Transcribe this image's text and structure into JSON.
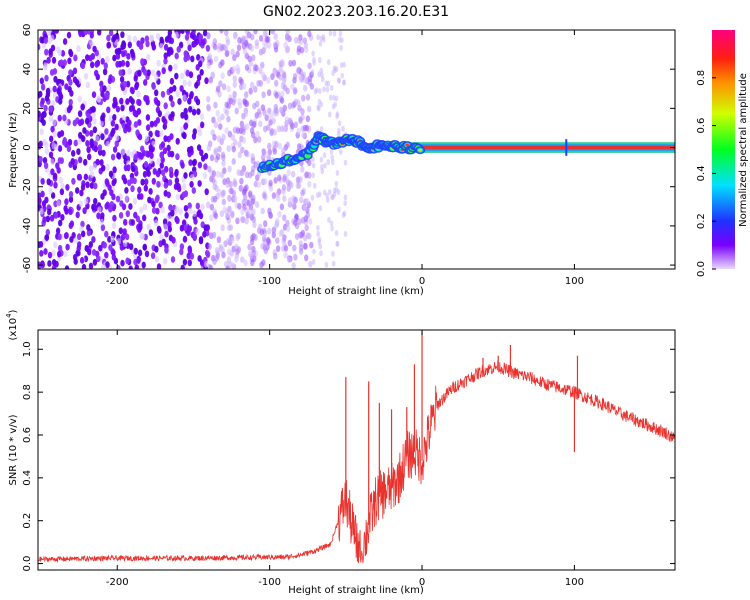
{
  "title": "GN02.2023.203.16.20.E31",
  "chart_data": [
    {
      "type": "heatmap",
      "name": "spectrogram",
      "xlabel": "Height of straight line (km)",
      "ylabel": "Frequency (Hz)",
      "xlim": [
        -252,
        166
      ],
      "ylim": [
        -62,
        60
      ],
      "xticks": [
        -200,
        -100,
        0,
        100
      ],
      "yticks": [
        -60,
        -40,
        -20,
        0,
        20,
        40,
        60
      ],
      "noise_region": {
        "x_start": -252,
        "x_end": -72,
        "sparse_to": -50
      },
      "signal_track": [
        [
          -105,
          -10
        ],
        [
          -95,
          -8
        ],
        [
          -85,
          -6
        ],
        [
          -75,
          -3
        ],
        [
          -68,
          5
        ],
        [
          -62,
          3
        ],
        [
          -55,
          2
        ],
        [
          -48,
          4
        ],
        [
          -42,
          3
        ],
        [
          -35,
          0
        ],
        [
          -28,
          1
        ],
        [
          -20,
          1
        ],
        [
          -12,
          0
        ],
        [
          0,
          0
        ],
        [
          50,
          0
        ],
        [
          100,
          0
        ],
        [
          166,
          0
        ]
      ],
      "colorbar": {
        "label": "Normalized spectral amplitude",
        "ticks": [
          0.0,
          0.2,
          0.4,
          0.6,
          0.8
        ],
        "range": [
          0,
          1
        ]
      },
      "grid": false
    },
    {
      "type": "line",
      "name": "snr",
      "xlabel": "Height of straight line (km)",
      "ylabel": "SNR (10 * v/v)",
      "multiplier_label": "(x10",
      "multiplier_exp": "4",
      "multiplier_close": ")",
      "xlim": [
        -252,
        166
      ],
      "ylim": [
        -0.03,
        1.09
      ],
      "xticks": [
        -200,
        -100,
        0,
        100
      ],
      "yticks": [
        0.0,
        0.2,
        0.4,
        0.6,
        0.8,
        1.0
      ],
      "color": "#e8332f",
      "series": [
        {
          "x": [
            -252,
            -200,
            -150,
            -100,
            -90,
            -80,
            -70,
            -60,
            -55,
            -50,
            -45,
            -40,
            -35,
            -30,
            -25,
            -20,
            -15,
            -10,
            -5,
            0,
            5,
            10,
            20,
            30,
            40,
            50,
            60,
            70,
            80,
            90,
            100,
            110,
            120,
            130,
            140,
            150,
            160,
            166
          ],
          "values": [
            0.02,
            0.025,
            0.025,
            0.03,
            0.03,
            0.04,
            0.06,
            0.09,
            0.2,
            0.3,
            0.15,
            0.03,
            0.18,
            0.3,
            0.33,
            0.35,
            0.4,
            0.5,
            0.52,
            0.48,
            0.62,
            0.74,
            0.82,
            0.86,
            0.9,
            0.92,
            0.89,
            0.87,
            0.84,
            0.82,
            0.8,
            0.77,
            0.74,
            0.7,
            0.67,
            0.64,
            0.61,
            0.58
          ],
          "spikes": [
            [
              -50,
              0.87
            ],
            [
              -44,
              0.1
            ],
            [
              -40,
              0.02
            ],
            [
              -35,
              0.85
            ],
            [
              -32,
              0.28
            ],
            [
              -28,
              0.75
            ],
            [
              -24,
              0.37
            ],
            [
              -20,
              0.72
            ],
            [
              -10,
              0.73
            ],
            [
              -5,
              0.93
            ],
            [
              0,
              1.08
            ],
            [
              20,
              0.82
            ],
            [
              40,
              0.96
            ],
            [
              50,
              0.97
            ],
            [
              58,
              1.02
            ],
            [
              76,
              0.85
            ],
            [
              100,
              0.52
            ],
            [
              102,
              0.97
            ]
          ]
        }
      ],
      "grid": false
    }
  ]
}
